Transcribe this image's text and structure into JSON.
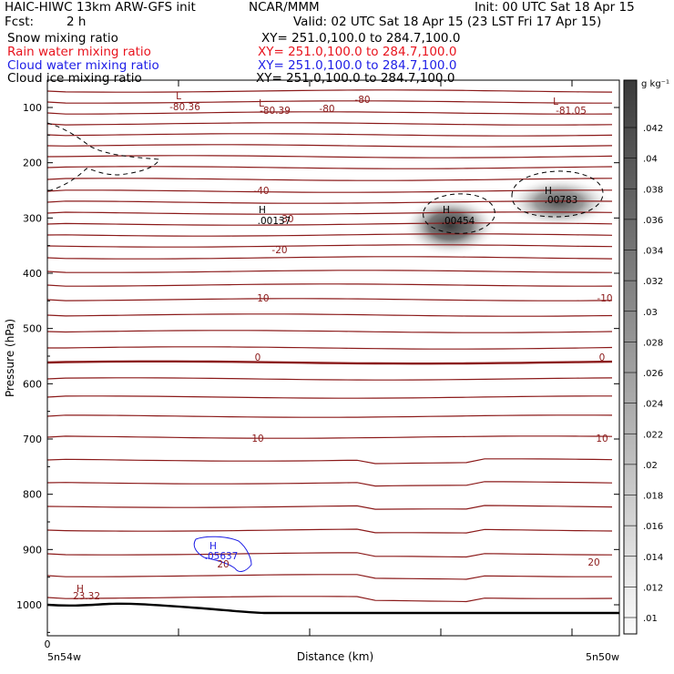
{
  "header": {
    "title_left": "HAIC-HIWC 13km ARW-GFS init",
    "title_center": "NCAR/MMM",
    "init": "Init: 00 UTC Sat 18 Apr 15",
    "fcst_label": "Fcst:",
    "fcst_value": "2 h",
    "valid": "Valid: 02 UTC Sat 18 Apr 15 (23 LST Fri 17 Apr 15)",
    "fields": [
      {
        "name": "Snow mixing ratio",
        "xy": "XY= 251.0,100.0 to 284.7,100.0",
        "color": "#000000"
      },
      {
        "name": "Rain water mixing ratio",
        "xy": "XY= 251.0,100.0 to 284.7,100.0",
        "color": "#e8141e"
      },
      {
        "name": "Cloud water mixing ratio",
        "xy": "XY= 251.0,100.0 to 284.7,100.0",
        "color": "#1e1ee6"
      },
      {
        "name": "Cloud ice mixing ratio",
        "xy": "XY= 251.0,100.0 to 284.7,100.0",
        "color": "#000000"
      }
    ]
  },
  "colorbar": {
    "unit": "g kg⁻¹",
    "ticks": [
      ".01",
      ".012",
      ".014",
      ".016",
      ".018",
      ".02",
      ".022",
      ".024",
      ".026",
      ".028",
      ".03",
      ".032",
      ".034",
      ".036",
      ".038",
      ".04",
      ".042"
    ]
  },
  "chart_data": {
    "type": "contour cross-section",
    "xlabel": "Distance (km)",
    "ylabel": "Pressure (hPa)",
    "x_tick_labels": [
      "0"
    ],
    "x_endpoints": [
      "5n54w",
      "5n50w"
    ],
    "y_ticks": [
      100,
      200,
      300,
      400,
      500,
      600,
      700,
      800,
      900,
      1000
    ],
    "y_axis": "pressure, increasing downward",
    "temperature_contour_labels": [
      "-80.36",
      "-80.39",
      "-80",
      "-80",
      "-81.05",
      "-40",
      "-30",
      "-20",
      "-10",
      "-10",
      "0",
      "0",
      "10",
      "10",
      "20",
      "20",
      "23.32"
    ],
    "extrema": [
      {
        "kind": "L",
        "value": "-80.36"
      },
      {
        "kind": "L",
        "value": "-80.39"
      },
      {
        "kind": "L",
        "value": "-81.05"
      },
      {
        "kind": "H",
        "value": ".00783"
      },
      {
        "kind": "H",
        "value": ".00454"
      },
      {
        "kind": "H",
        "value": ".00137"
      },
      {
        "kind": "H",
        "value": ".05637"
      },
      {
        "kind": "H",
        "value": "23.32"
      }
    ]
  }
}
